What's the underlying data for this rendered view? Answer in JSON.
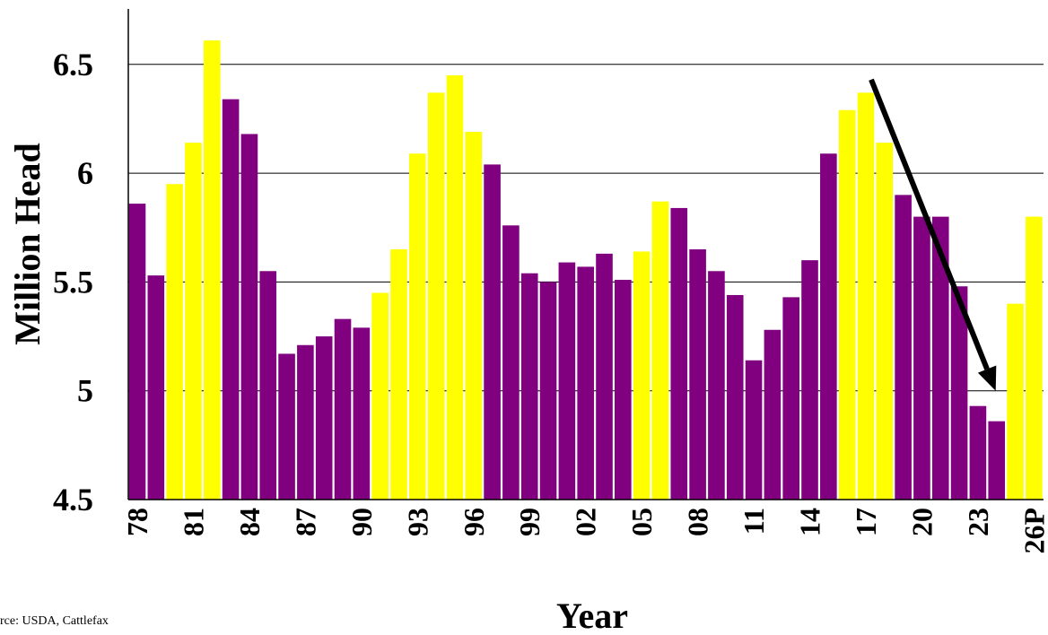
{
  "chart_data": {
    "type": "bar",
    "title": "",
    "xlabel": "Year",
    "ylabel": "Million Head",
    "ylim": [
      4.5,
      6.7
    ],
    "yticks": [
      "4.5",
      "5",
      "5.5",
      "6",
      "6.5"
    ],
    "xtick_labels": [
      "78",
      "81",
      "84",
      "87",
      "90",
      "93",
      "96",
      "99",
      "02",
      "05",
      "08",
      "11",
      "14",
      "17",
      "20",
      "23",
      "26P"
    ],
    "grid": "horizontal",
    "categories": [
      "78",
      "79",
      "80",
      "81",
      "82",
      "83",
      "84",
      "85",
      "86",
      "87",
      "88",
      "89",
      "90",
      "91",
      "92",
      "93",
      "94",
      "95",
      "96",
      "97",
      "98",
      "99",
      "00",
      "01",
      "02",
      "03",
      "04",
      "05",
      "06",
      "07",
      "08",
      "09",
      "10",
      "11",
      "12",
      "13",
      "14",
      "15",
      "16",
      "17",
      "18",
      "19",
      "20",
      "21",
      "22",
      "23",
      "24",
      "25",
      "26P"
    ],
    "values": [
      5.86,
      5.53,
      5.95,
      6.14,
      6.61,
      6.34,
      6.18,
      5.55,
      5.17,
      5.21,
      5.25,
      5.33,
      5.29,
      5.45,
      5.65,
      6.09,
      6.37,
      6.45,
      6.19,
      6.04,
      5.76,
      5.54,
      5.5,
      5.59,
      5.57,
      5.63,
      5.51,
      5.64,
      5.87,
      5.84,
      5.65,
      5.55,
      5.44,
      5.14,
      5.28,
      5.43,
      5.6,
      6.09,
      6.29,
      6.37,
      6.14,
      5.9,
      5.8,
      5.8,
      5.48,
      4.93,
      4.86,
      5.4,
      5.8
    ],
    "bar_colors": [
      "#800080",
      "#800080",
      "#ffff00",
      "#ffff00",
      "#ffff00",
      "#800080",
      "#800080",
      "#800080",
      "#800080",
      "#800080",
      "#800080",
      "#800080",
      "#800080",
      "#ffff00",
      "#ffff00",
      "#ffff00",
      "#ffff00",
      "#ffff00",
      "#ffff00",
      "#800080",
      "#800080",
      "#800080",
      "#800080",
      "#800080",
      "#800080",
      "#800080",
      "#800080",
      "#ffff00",
      "#ffff00",
      "#800080",
      "#800080",
      "#800080",
      "#800080",
      "#800080",
      "#800080",
      "#800080",
      "#800080",
      "#800080",
      "#ffff00",
      "#ffff00",
      "#ffff00",
      "#800080",
      "#800080",
      "#800080",
      "#800080",
      "#800080",
      "#800080",
      "#ffff00",
      "#ffff00"
    ],
    "annotation_arrow": {
      "from": {
        "x": "17",
        "y": 6.43
      },
      "to": {
        "x": "24",
        "y": 5.0
      },
      "color": "#000000"
    },
    "source": "rce:  USDA, Cattlefax"
  }
}
